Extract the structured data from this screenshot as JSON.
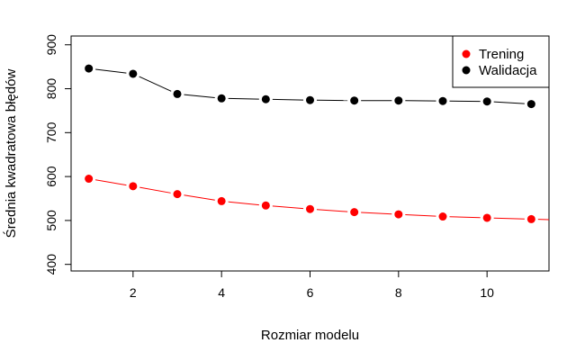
{
  "chart_data": {
    "type": "line",
    "title": "",
    "xlabel": "Rozmiar modelu",
    "ylabel": "Średnia kwadratowa błędów",
    "xlim": [
      0.6,
      11.4
    ],
    "ylim": [
      385,
      920
    ],
    "xticks": [
      2,
      4,
      6,
      8,
      10
    ],
    "yticks": [
      400,
      500,
      600,
      700,
      800,
      900
    ],
    "grid": false,
    "legend_position": "top-right",
    "x": [
      1,
      2,
      3,
      4,
      5,
      6,
      7,
      8,
      9,
      10,
      11
    ],
    "series": [
      {
        "name": "Trening",
        "color": "#ff0000",
        "values": [
          595,
          578,
          560,
          544,
          534,
          526,
          519,
          514,
          509,
          506,
          503
        ]
      },
      {
        "name": "Walidacja",
        "color": "#000000",
        "values": [
          846,
          834,
          788,
          778,
          776,
          774,
          773,
          773,
          772,
          771,
          765
        ]
      }
    ]
  }
}
